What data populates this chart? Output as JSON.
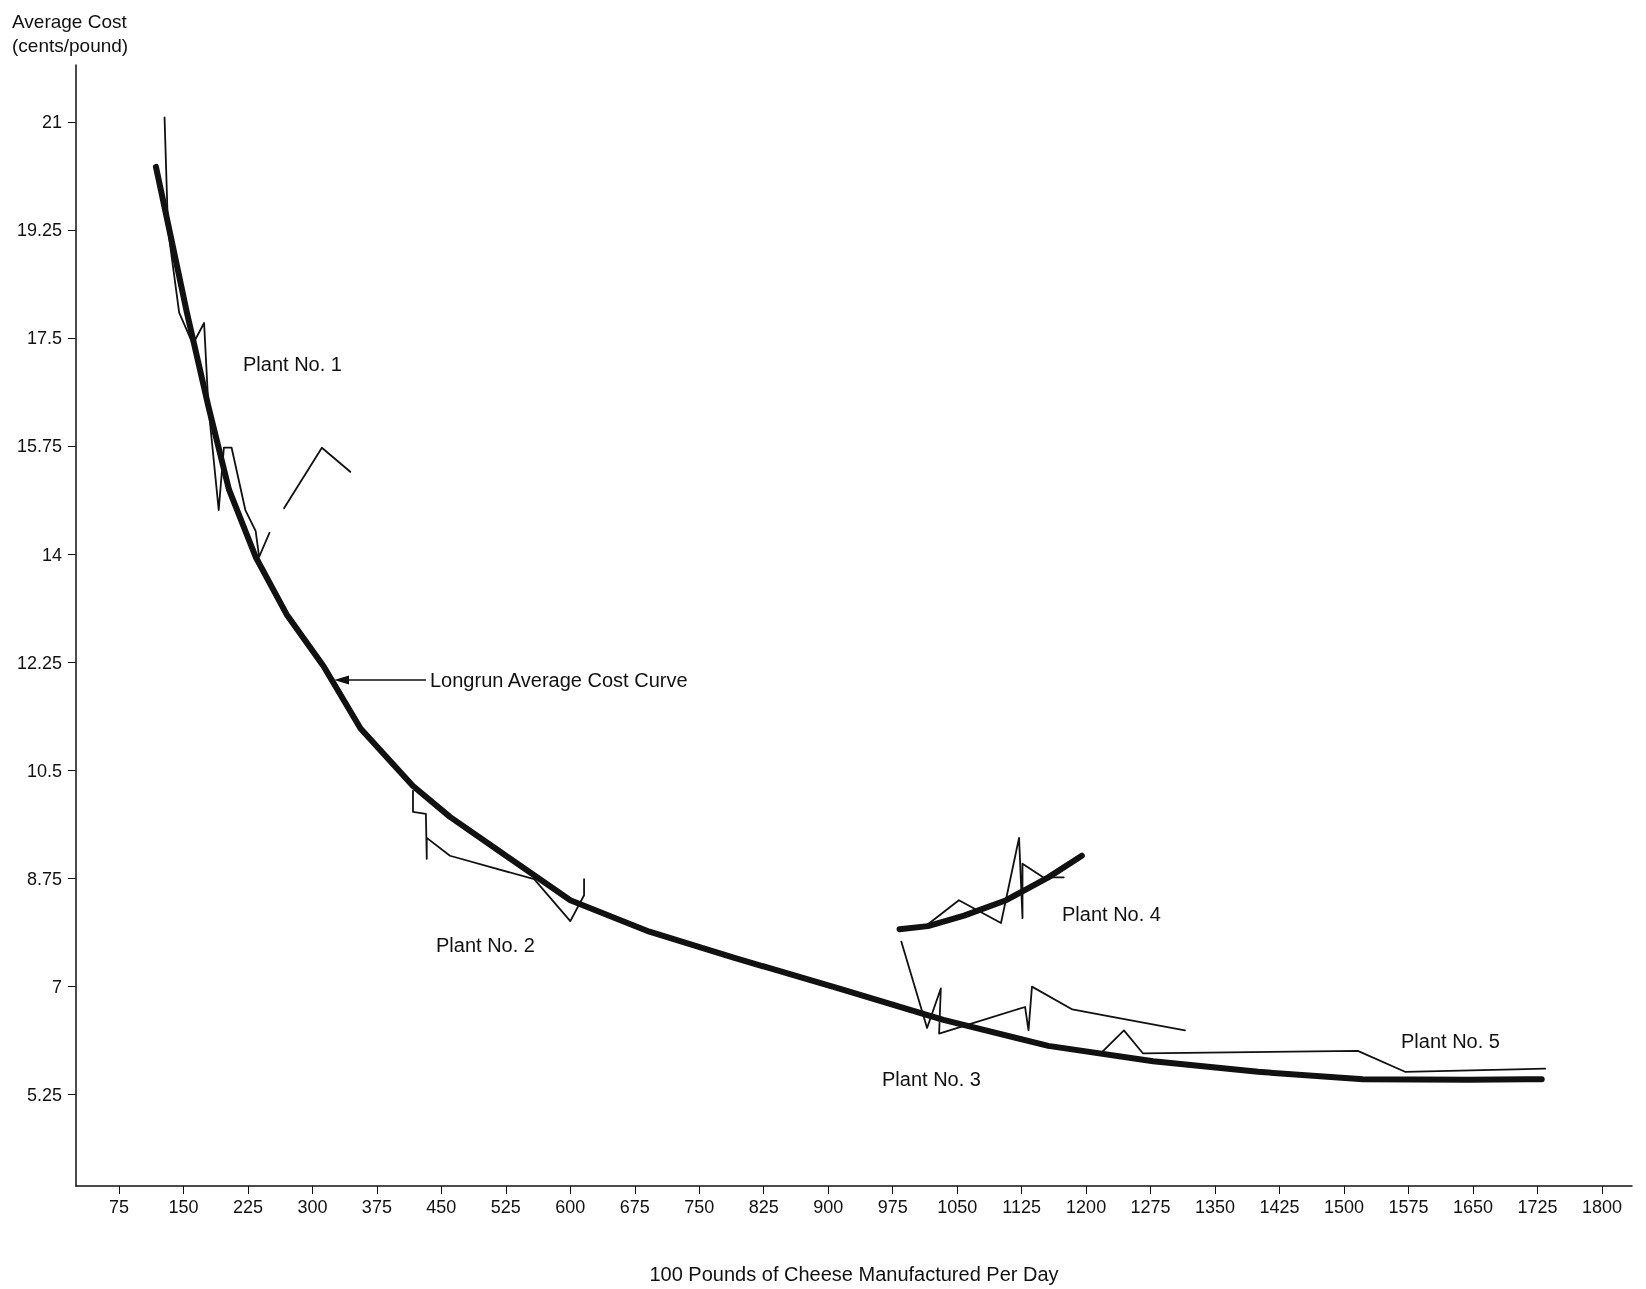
{
  "chart_data": {
    "type": "line",
    "xlabel": "100 Pounds of Cheese Manufactured Per Day",
    "ylabel": "Average Cost\n(cents/pound)",
    "xlim": [
      25,
      1835
    ],
    "xticks": [
      75,
      150,
      225,
      300,
      375,
      450,
      525,
      600,
      675,
      750,
      825,
      900,
      975,
      1050,
      1125,
      1200,
      1275,
      1350,
      1425,
      1500,
      1575,
      1650,
      1725,
      1800
    ],
    "ylim": [
      3.77,
      21.93
    ],
    "yticks": [
      5.25,
      7,
      8.75,
      10.5,
      12.25,
      14,
      15.75,
      17.5,
      19.25,
      21
    ],
    "grid": false,
    "marker": "none",
    "line_style": "solid",
    "series": [
      {
        "color": "#111111",
        "x": [
          118,
          136,
          154,
          179,
          203,
          234,
          270,
          313,
          356,
          417,
          460,
          521,
          600,
          692,
          790,
          912,
          1034,
          1156,
          1278,
          1400,
          1522,
          1645,
          1730
        ],
        "values": [
          20.28,
          19.1,
          17.92,
          16.4,
          15.05,
          13.96,
          13.03,
          12.19,
          11.18,
          10.25,
          9.75,
          9.16,
          8.4,
          7.89,
          7.47,
          6.97,
          6.46,
          6.04,
          5.79,
          5.62,
          5.5,
          5.49,
          5.5
        ]
      },
      {
        "color": "#111111",
        "x": [
          983,
          1016,
          1058,
          1107,
          1156,
          1195
        ],
        "values": [
          7.93,
          7.98,
          8.15,
          8.4,
          8.77,
          9.12
        ]
      },
      {
        "color": "#111111",
        "x": [
          128,
          132,
          145,
          161,
          174,
          179,
          191,
          197,
          206,
          222,
          234,
          238,
          250
        ],
        "values": [
          21.08,
          19.27,
          17.92,
          17.41,
          17.75,
          16.4,
          14.72,
          15.73,
          15.73,
          14.72,
          14.38,
          13.96,
          14.35
        ]
      },
      {
        "color": "#111111",
        "x": [
          267,
          311,
          344
        ],
        "values": [
          14.75,
          15.73,
          15.34
        ]
      },
      {
        "color": "#111111",
        "x": [
          417,
          417,
          432,
          433,
          433,
          460,
          558,
          600,
          616,
          616
        ],
        "values": [
          10.17,
          9.83,
          9.8,
          9.07,
          9.41,
          9.12,
          8.74,
          8.06,
          8.48,
          8.74
        ]
      },
      {
        "color": "#111111",
        "x": [
          985,
          1015,
          1031,
          1029,
          1129,
          1133,
          1137,
          1184,
          1315
        ],
        "values": [
          7.73,
          6.33,
          6.97,
          6.24,
          6.67,
          6.29,
          7.0,
          6.63,
          6.29
        ]
      },
      {
        "color": "#111111",
        "x": [
          1217,
          1244,
          1266,
          1516,
          1571,
          1734
        ],
        "values": [
          5.92,
          6.29,
          5.92,
          5.96,
          5.62,
          5.67
        ]
      },
      {
        "color": "#111111",
        "x": [
          985,
          1016,
          1052,
          1101,
          1122,
          1126,
          1126,
          1150,
          1174
        ],
        "values": [
          7.93,
          8.01,
          8.4,
          8.03,
          9.41,
          8.11,
          8.99,
          8.77,
          8.77
        ]
      }
    ],
    "annotations": [
      "Plant No. 1",
      "Longrun Average Cost Curve",
      "Plant No. 2",
      "Plant No. 4",
      "Plant No. 3",
      "Plant No. 5"
    ]
  }
}
